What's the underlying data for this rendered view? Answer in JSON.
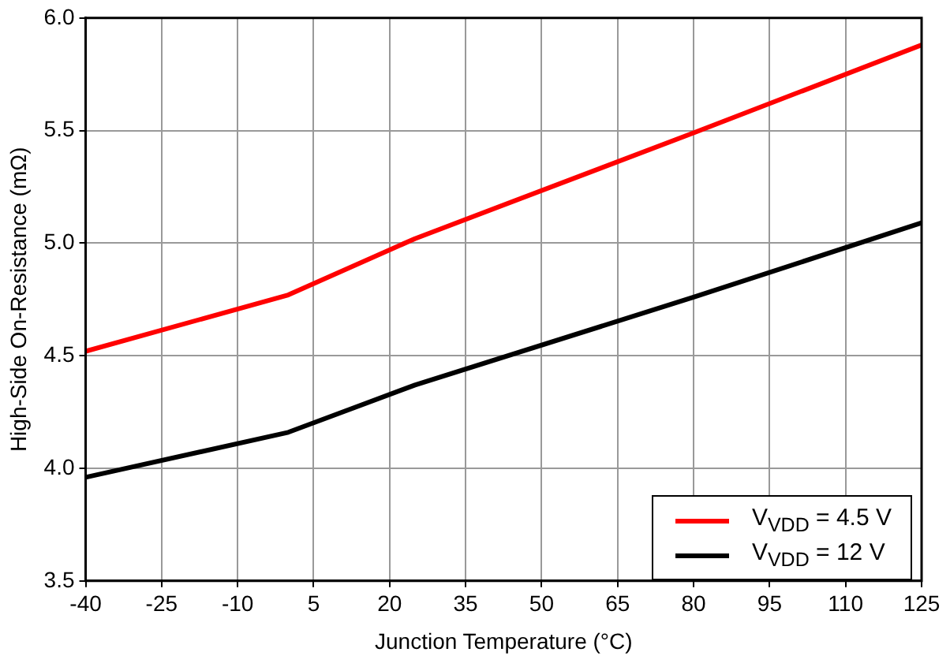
{
  "chart_data": {
    "type": "line",
    "xlabel": "Junction Temperature (°C)",
    "ylabel": "High-Side On-Resistance (mΩ)",
    "x": [
      -40,
      0,
      25,
      80,
      125
    ],
    "series": [
      {
        "name": "V$_{VDD}$ = 4.5 V",
        "color": "#ff0000",
        "values": [
          4.52,
          4.77,
          5.02,
          5.49,
          5.88
        ]
      },
      {
        "name": "V$_{VDD}$ = 12 V",
        "color": "#000000",
        "values": [
          3.96,
          4.16,
          4.37,
          4.76,
          5.09
        ]
      }
    ],
    "xlim": [
      -40,
      125
    ],
    "xticks": [
      -40,
      -25,
      -10,
      5,
      20,
      35,
      50,
      65,
      80,
      95,
      110,
      125
    ],
    "ylim": [
      3.5,
      6.0
    ],
    "yticks": [
      {
        "value": 3.5,
        "label": "3.5"
      },
      {
        "value": 4,
        "label": "4.0"
      },
      {
        "value": 4.5,
        "label": "4.5"
      },
      {
        "value": 5,
        "label": "5.0"
      },
      {
        "value": 5.5,
        "label": "5.5"
      },
      {
        "value": 6,
        "label": "6.0"
      }
    ],
    "grid": true,
    "legend": "bottom right",
    "marker": "none",
    "line_style": "solid"
  }
}
